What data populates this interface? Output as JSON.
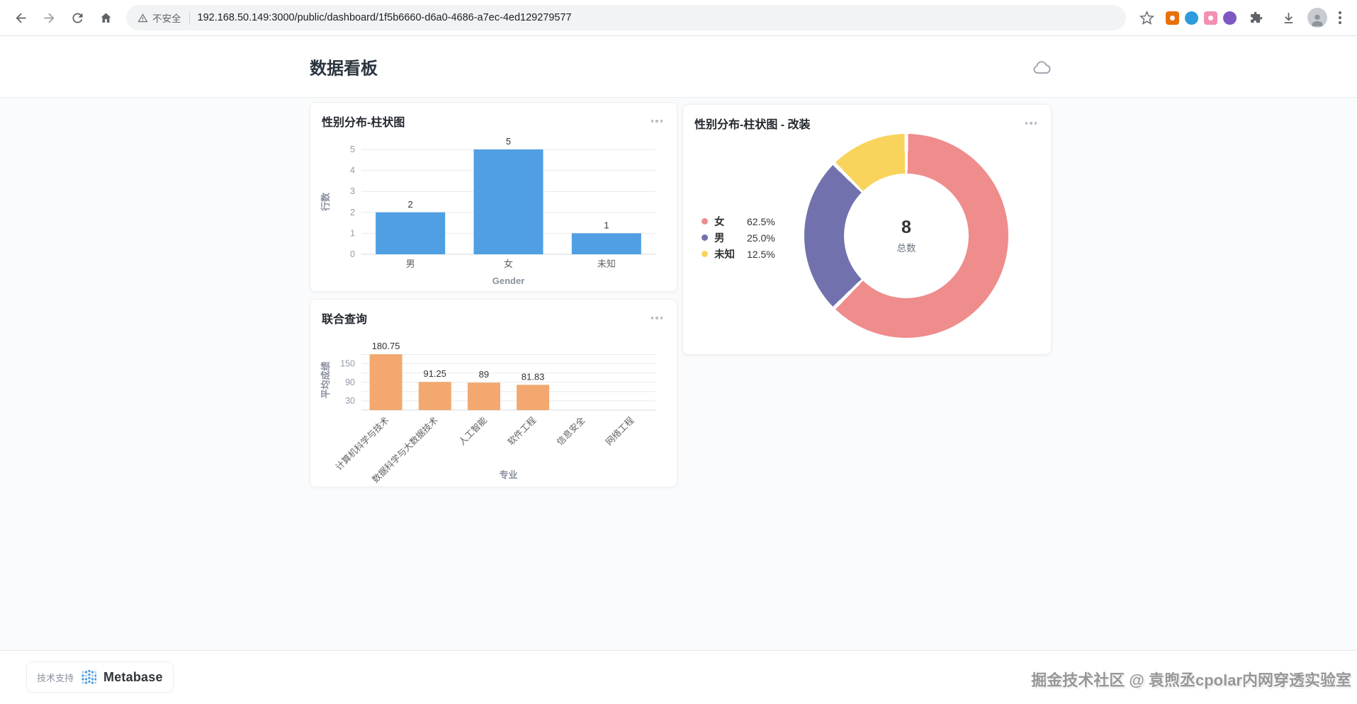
{
  "browser": {
    "security_label": "不安全",
    "url": "192.168.50.149:3000/public/dashboard/1f5b6660-d6a0-4686-a7ec-4ed129279577",
    "icons": [
      "back-icon",
      "forward-icon",
      "reload-icon",
      "home-icon",
      "warning-icon",
      "star-icon",
      "extension-icon-orange",
      "extension-icon-blue",
      "extension-icon-pink",
      "extension-icon-purple",
      "extensions-puzzle-icon",
      "download-icon",
      "avatar",
      "kebab-menu-icon"
    ]
  },
  "header": {
    "title": "数据看板",
    "export_icon": "cloud-export-icon"
  },
  "chart_data": [
    {
      "id": "gender_bar",
      "type": "bar",
      "title": "性别分布-柱状图",
      "categories": [
        "男",
        "女",
        "未知"
      ],
      "values": [
        2,
        5,
        1
      ],
      "value_labels": [
        "2",
        "5",
        "1"
      ],
      "xlabel": "Gender",
      "ylabel": "行数",
      "ylim": [
        0,
        5
      ],
      "yticks": [
        0,
        1,
        2,
        3,
        4,
        5
      ],
      "bar_color": "#509EE3",
      "grid": true,
      "legend_position": "none"
    },
    {
      "id": "joint_query",
      "type": "bar",
      "title": "联合查询",
      "categories": [
        "计算机科学与技术",
        "数据科学与大数据技术",
        "人工智能",
        "软件工程",
        "信息安全",
        "网络工程"
      ],
      "values": [
        180.75,
        91.25,
        89,
        81.83,
        null,
        null
      ],
      "value_labels": [
        "180.75",
        "91.25",
        "89",
        "81.83",
        "",
        ""
      ],
      "xlabel": "专业",
      "ylabel": "平均成绩",
      "ylim": [
        0,
        195
      ],
      "yticks": [
        30,
        90,
        150
      ],
      "bar_color": "#F2A86F",
      "grid": true,
      "legend_position": "none"
    },
    {
      "id": "gender_donut",
      "type": "pie",
      "title": "性别分布-柱状图 - 改装",
      "segments": [
        {
          "label": "女",
          "percent": 62.5,
          "display": "62.5%",
          "color": "#EF8C8C"
        },
        {
          "label": "男",
          "percent": 25.0,
          "display": "25.0%",
          "color": "#7172AD"
        },
        {
          "label": "未知",
          "percent": 12.5,
          "display": "12.5%",
          "color": "#F9D45C"
        }
      ],
      "center_value": "8",
      "center_label": "总数",
      "legend_position": "left"
    }
  ],
  "footer": {
    "support_label": "技术支持",
    "brand": "Metabase",
    "watermark": "掘金技术社区 @ 袁煦丞cpolar内网穿透实验室"
  }
}
